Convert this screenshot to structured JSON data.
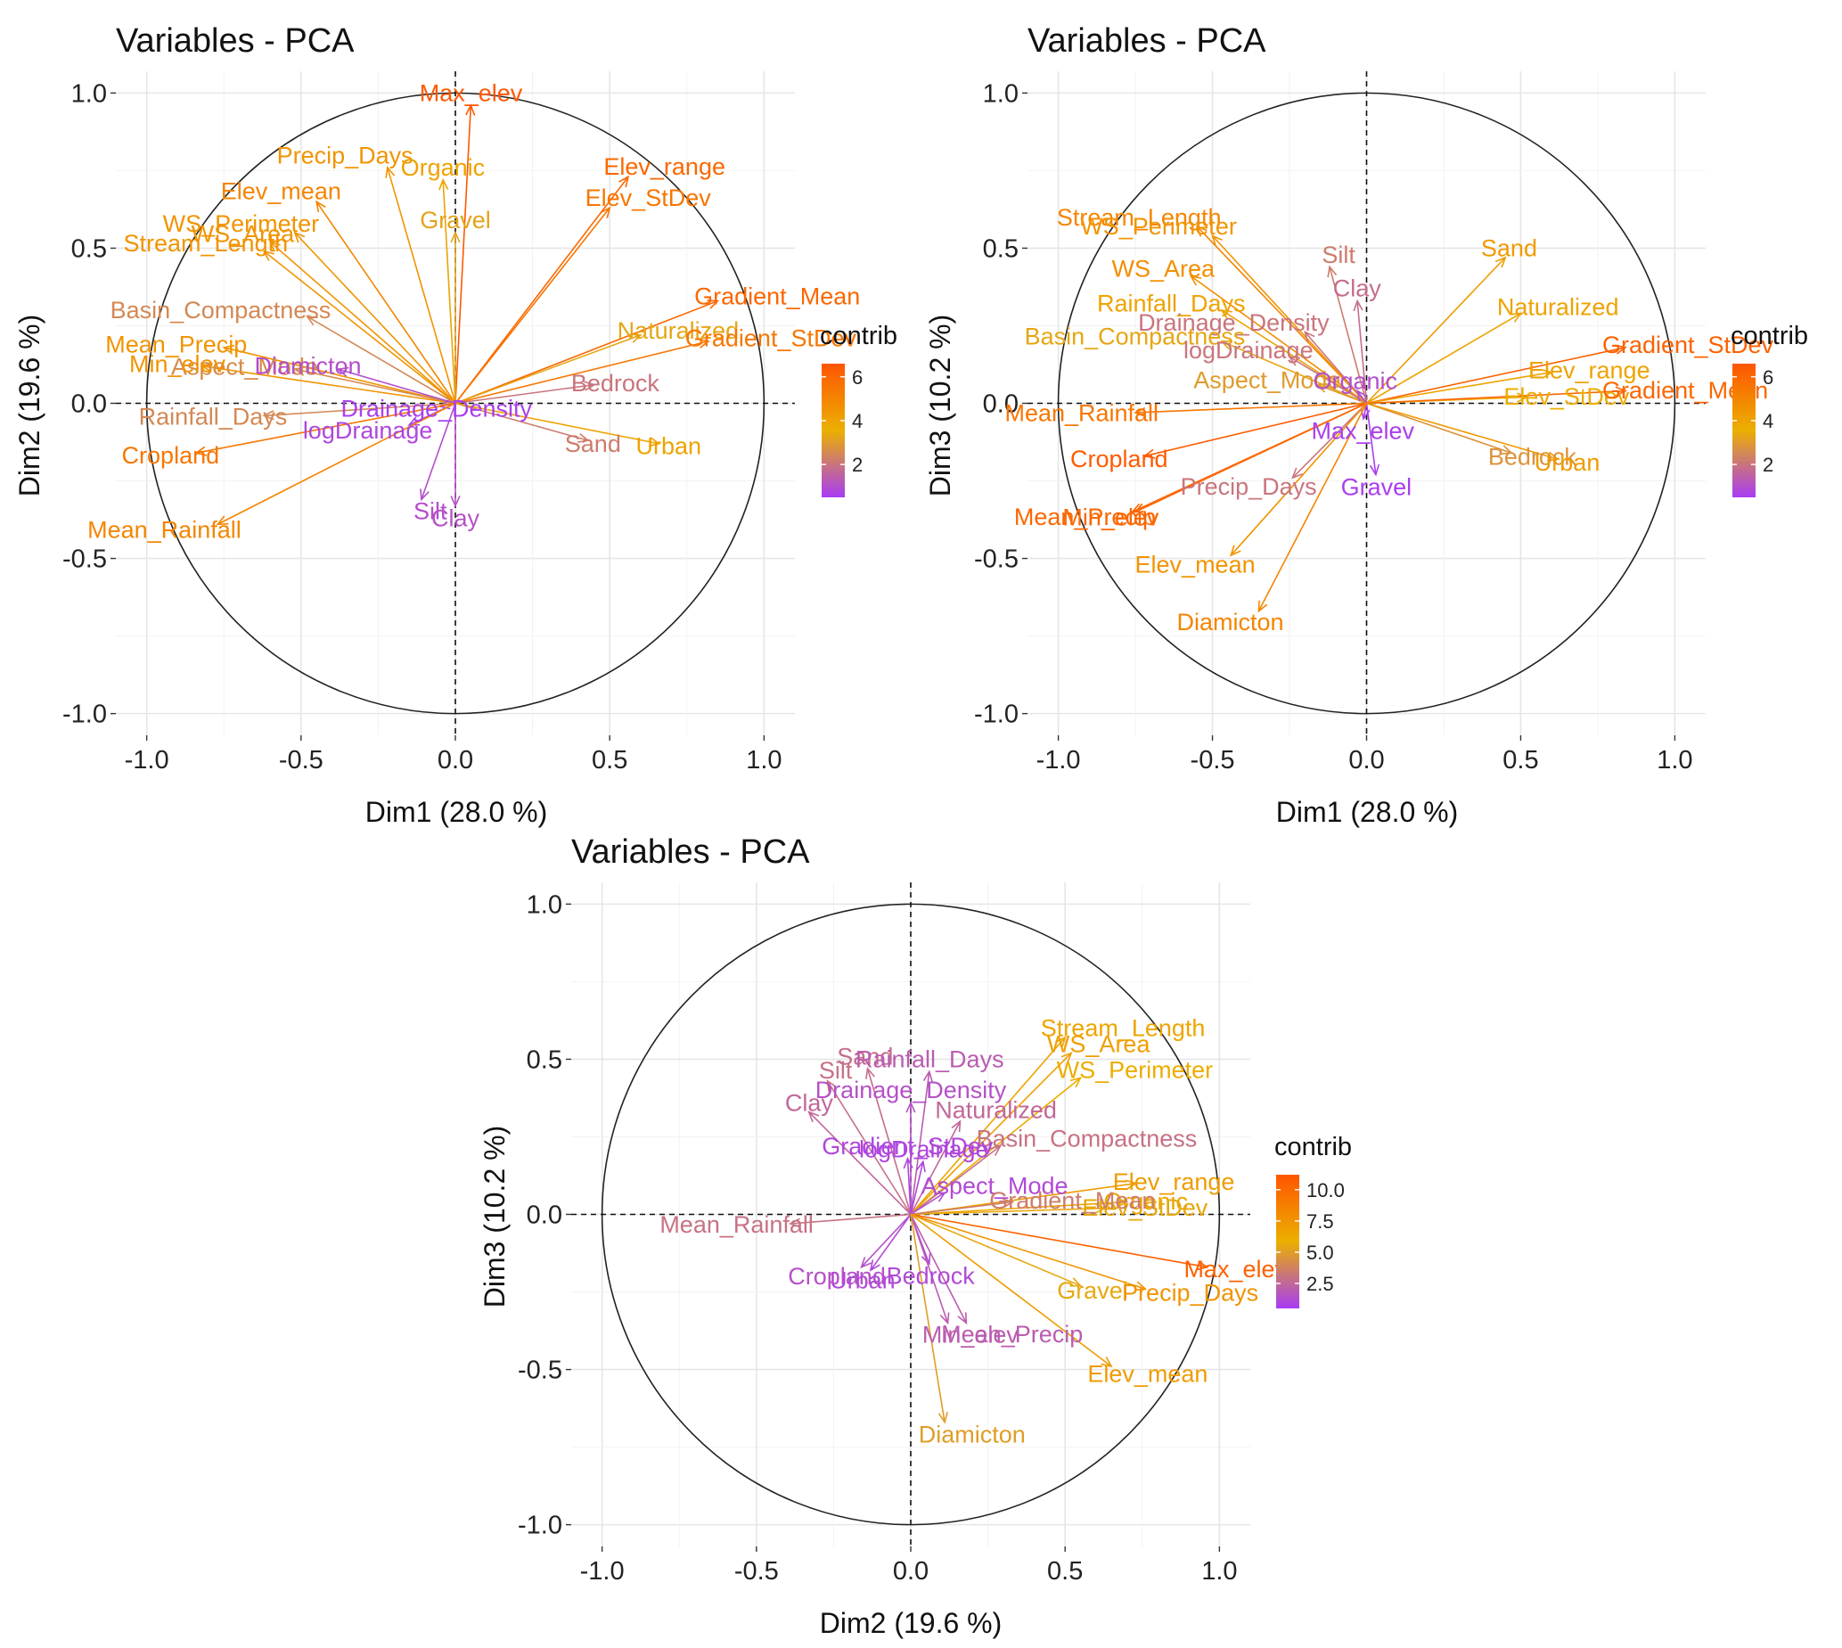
{
  "palette": {
    "low": "#a83bf5",
    "mid": "#ebb000",
    "high": "#ff5500"
  },
  "chart_data": [
    {
      "type": "scatter",
      "title": "Variables - PCA",
      "xlabel": "Dim1 (28.0 %)",
      "ylabel": "Dim2 (19.6 %)",
      "xlim": [
        -1.1,
        1.1
      ],
      "ylim": [
        -1.07,
        1.07
      ],
      "xticks": [
        "-1.0",
        "-0.5",
        "0.0",
        "0.5",
        "1.0"
      ],
      "yticks": [
        "-1.0",
        "-0.5",
        "0.0",
        "0.5",
        "1.0"
      ],
      "grid": true,
      "legend": {
        "title": "contrib",
        "ticks": [
          "2",
          "4",
          "6"
        ],
        "min": 0.5,
        "max": 6.6,
        "position": "right"
      },
      "variables": [
        {
          "name": "Max_elev",
          "x": 0.05,
          "y": 0.96,
          "contrib": 6.5
        },
        {
          "name": "Precip_Days",
          "x": -0.22,
          "y": 0.76,
          "contrib": 4.5
        },
        {
          "name": "Organic",
          "x": -0.04,
          "y": 0.72,
          "contrib": 4.0
        },
        {
          "name": "Elev_range",
          "x": 0.56,
          "y": 0.73,
          "contrib": 6.0
        },
        {
          "name": "Elev_mean",
          "x": -0.45,
          "y": 0.65,
          "contrib": 5.0
        },
        {
          "name": "Elev_StDev",
          "x": 0.5,
          "y": 0.63,
          "contrib": 5.5
        },
        {
          "name": "Gravel",
          "x": 0.0,
          "y": 0.55,
          "contrib": 3.2
        },
        {
          "name": "WS_Perimeter",
          "x": -0.52,
          "y": 0.55,
          "contrib": 4.5
        },
        {
          "name": "WS_Area",
          "x": -0.6,
          "y": 0.52,
          "contrib": 4.5
        },
        {
          "name": "Stream_Length",
          "x": -0.62,
          "y": 0.49,
          "contrib": 4.5
        },
        {
          "name": "Basin_Compactness",
          "x": -0.48,
          "y": 0.28,
          "contrib": 2.5
        },
        {
          "name": "Gradient_Mean",
          "x": 0.85,
          "y": 0.33,
          "contrib": 6.0
        },
        {
          "name": "Mean_Precip",
          "x": -0.75,
          "y": 0.18,
          "contrib": 4.5
        },
        {
          "name": "Naturalized",
          "x": 0.6,
          "y": 0.22,
          "contrib": 3.3
        },
        {
          "name": "Gradient_StDev",
          "x": 0.82,
          "y": 0.2,
          "contrib": 5.5
        },
        {
          "name": "Aspect_Mode",
          "x": -0.52,
          "y": 0.11,
          "contrib": 2.6
        },
        {
          "name": "Min_elev",
          "x": -0.82,
          "y": 0.12,
          "contrib": 4.5
        },
        {
          "name": "Diamicton",
          "x": -0.38,
          "y": 0.11,
          "contrib": 1.0
        },
        {
          "name": "Bedrock",
          "x": 0.45,
          "y": 0.06,
          "contrib": 2.0
        },
        {
          "name": "Drainage_Density",
          "x": -0.05,
          "y": -0.01,
          "contrib": 0.6
        },
        {
          "name": "Rainfall_Days",
          "x": -0.62,
          "y": -0.04,
          "contrib": 2.5
        },
        {
          "name": "Sand",
          "x": 0.43,
          "y": -0.12,
          "contrib": 2.2
        },
        {
          "name": "logDrainage",
          "x": -0.15,
          "y": -0.07,
          "contrib": 0.8
        },
        {
          "name": "Urban",
          "x": 0.66,
          "y": -0.13,
          "contrib": 4.0
        },
        {
          "name": "Cropland",
          "x": -0.84,
          "y": -0.16,
          "contrib": 5.5
        },
        {
          "name": "Silt",
          "x": -0.11,
          "y": -0.31,
          "contrib": 1.0
        },
        {
          "name": "Mean_Rainfall",
          "x": -0.77,
          "y": -0.39,
          "contrib": 5.0
        },
        {
          "name": "Clay",
          "x": 0.0,
          "y": -0.33,
          "contrib": 1.1
        }
      ]
    },
    {
      "type": "scatter",
      "title": "Variables - PCA",
      "xlabel": "Dim1 (28.0 %)",
      "ylabel": "Dim3 (10.2 %)",
      "xlim": [
        -1.1,
        1.1
      ],
      "ylim": [
        -1.07,
        1.07
      ],
      "xticks": [
        "-1.0",
        "-0.5",
        "0.0",
        "0.5",
        "1.0"
      ],
      "yticks": [
        "-1.0",
        "-0.5",
        "0.0",
        "0.5",
        "1.0"
      ],
      "grid": true,
      "legend": {
        "title": "contrib",
        "ticks": [
          "2",
          "4",
          "6"
        ],
        "min": 0.5,
        "max": 6.6,
        "position": "right"
      },
      "variables": [
        {
          "name": "Stream_Length",
          "x": -0.55,
          "y": 0.57,
          "contrib": 5.0
        },
        {
          "name": "WS_Perimeter",
          "x": -0.5,
          "y": 0.54,
          "contrib": 4.5
        },
        {
          "name": "Silt",
          "x": -0.12,
          "y": 0.44,
          "contrib": 2.2
        },
        {
          "name": "Sand",
          "x": 0.45,
          "y": 0.47,
          "contrib": 4.3
        },
        {
          "name": "WS_Area",
          "x": -0.57,
          "y": 0.41,
          "contrib": 4.7
        },
        {
          "name": "Clay",
          "x": -0.03,
          "y": 0.33,
          "contrib": 1.8
        },
        {
          "name": "Rainfall_Days",
          "x": -0.47,
          "y": 0.3,
          "contrib": 4.0
        },
        {
          "name": "Naturalized",
          "x": 0.5,
          "y": 0.29,
          "contrib": 4.0
        },
        {
          "name": "Drainage_Density",
          "x": -0.2,
          "y": 0.23,
          "contrib": 2.0
        },
        {
          "name": "Gradient_StDev",
          "x": 0.84,
          "y": 0.18,
          "contrib": 6.2
        },
        {
          "name": "Basin_Compactness",
          "x": -0.47,
          "y": 0.2,
          "contrib": 3.3
        },
        {
          "name": "logDrainage",
          "x": -0.25,
          "y": 0.15,
          "contrib": 2.0
        },
        {
          "name": "Elev_range",
          "x": 0.6,
          "y": 0.1,
          "contrib": 4.0
        },
        {
          "name": "Aspect_Mode",
          "x": -0.16,
          "y": 0.06,
          "contrib": 3.0
        },
        {
          "name": "Organic",
          "x": -0.03,
          "y": 0.04,
          "contrib": 1.0
        },
        {
          "name": "Mean_Rainfall",
          "x": -0.75,
          "y": -0.03,
          "contrib": 5.5
        },
        {
          "name": "Elev_StDev",
          "x": 0.52,
          "y": 0.02,
          "contrib": 3.7
        },
        {
          "name": "Gradient_Mean",
          "x": 0.84,
          "y": 0.04,
          "contrib": 6.0
        },
        {
          "name": "Max_elev",
          "x": -0.01,
          "y": -0.05,
          "contrib": 0.6
        },
        {
          "name": "Bedrock",
          "x": 0.47,
          "y": -0.16,
          "contrib": 2.8
        },
        {
          "name": "Cropland",
          "x": -0.72,
          "y": -0.17,
          "contrib": 6.4
        },
        {
          "name": "Urban",
          "x": 0.62,
          "y": -0.18,
          "contrib": 4.3
        },
        {
          "name": "Mean_Precip",
          "x": -0.76,
          "y": -0.35,
          "contrib": 6.0
        },
        {
          "name": "Gravel",
          "x": 0.03,
          "y": -0.23,
          "contrib": 0.6
        },
        {
          "name": "Precip_Days",
          "x": -0.24,
          "y": -0.24,
          "contrib": 2.0
        },
        {
          "name": "Min_elev",
          "x": -0.75,
          "y": -0.35,
          "contrib": 6.0
        },
        {
          "name": "Elev_mean",
          "x": -0.44,
          "y": -0.49,
          "contrib": 4.5
        },
        {
          "name": "Diamicton",
          "x": -0.35,
          "y": -0.67,
          "contrib": 5.0
        }
      ]
    },
    {
      "type": "scatter",
      "title": "Variables - PCA",
      "xlabel": "Dim2 (19.6 %)",
      "ylabel": "Dim3 (10.2 %)",
      "xlim": [
        -1.1,
        1.1
      ],
      "ylim": [
        -1.07,
        1.07
      ],
      "xticks": [
        "-1.0",
        "-0.5",
        "0.0",
        "0.5",
        "1.0"
      ],
      "yticks": [
        "-1.0",
        "-0.5",
        "0.0",
        "0.5",
        "1.0"
      ],
      "grid": true,
      "legend": {
        "title": "contrib",
        "ticks": [
          "2.5",
          "5.0",
          "7.5",
          "10.0"
        ],
        "min": 0.5,
        "max": 11.2,
        "position": "right"
      },
      "variables": [
        {
          "name": "Stream_Length",
          "x": 0.5,
          "y": 0.57,
          "contrib": 6.5
        },
        {
          "name": "Sand",
          "x": -0.14,
          "y": 0.47,
          "contrib": 2.8
        },
        {
          "name": "WS_Area",
          "x": 0.52,
          "y": 0.52,
          "contrib": 6.8
        },
        {
          "name": "Rainfall_Days",
          "x": 0.06,
          "y": 0.46,
          "contrib": 2.0
        },
        {
          "name": "Silt",
          "x": -0.27,
          "y": 0.43,
          "contrib": 3.0
        },
        {
          "name": "WS_Perimeter",
          "x": 0.55,
          "y": 0.44,
          "contrib": 6.0
        },
        {
          "name": "Drainage_Density",
          "x": 0.0,
          "y": 0.36,
          "contrib": 1.5
        },
        {
          "name": "Naturalized",
          "x": 0.16,
          "y": 0.3,
          "contrib": 2.5
        },
        {
          "name": "Clay",
          "x": -0.33,
          "y": 0.33,
          "contrib": 2.5
        },
        {
          "name": "Basin_Compactness",
          "x": 0.29,
          "y": 0.22,
          "contrib": 3.0
        },
        {
          "name": "logDrainage",
          "x": 0.04,
          "y": 0.17,
          "contrib": 1.0
        },
        {
          "name": "Elev_range",
          "x": 0.73,
          "y": 0.1,
          "contrib": 7.0
        },
        {
          "name": "Organic",
          "x": 0.7,
          "y": 0.04,
          "contrib": 6.5
        },
        {
          "name": "Gradient_StDev",
          "x": -0.01,
          "y": 0.18,
          "contrib": 1.0
        },
        {
          "name": "Aspect_Mode",
          "x": 0.11,
          "y": 0.07,
          "contrib": 1.2
        },
        {
          "name": "Elev_StDev",
          "x": 0.63,
          "y": 0.02,
          "contrib": 5.5
        },
        {
          "name": "Mean_Rainfall",
          "x": -0.39,
          "y": -0.03,
          "contrib": 3.0
        },
        {
          "name": "Cropland",
          "x": -0.16,
          "y": -0.17,
          "contrib": 1.5
        },
        {
          "name": "Gradient_Mean",
          "x": 0.33,
          "y": 0.04,
          "contrib": 3.5
        },
        {
          "name": "Max_elev",
          "x": 0.96,
          "y": -0.17,
          "contrib": 10.5
        },
        {
          "name": "Bedrock",
          "x": 0.06,
          "y": -0.16,
          "contrib": 1.2
        },
        {
          "name": "Urban",
          "x": -0.13,
          "y": -0.18,
          "contrib": 1.2
        },
        {
          "name": "Gravel",
          "x": 0.55,
          "y": -0.23,
          "contrib": 5.5
        },
        {
          "name": "Precip_Days",
          "x": 0.76,
          "y": -0.24,
          "contrib": 7.5
        },
        {
          "name": "Mean_Precip",
          "x": 0.18,
          "y": -0.35,
          "contrib": 2.0
        },
        {
          "name": "Min_elev",
          "x": 0.12,
          "y": -0.35,
          "contrib": 2.0
        },
        {
          "name": "Elev_mean",
          "x": 0.65,
          "y": -0.49,
          "contrib": 7.0
        },
        {
          "name": "Diamicton",
          "x": 0.11,
          "y": -0.67,
          "contrib": 5.0
        }
      ]
    }
  ]
}
